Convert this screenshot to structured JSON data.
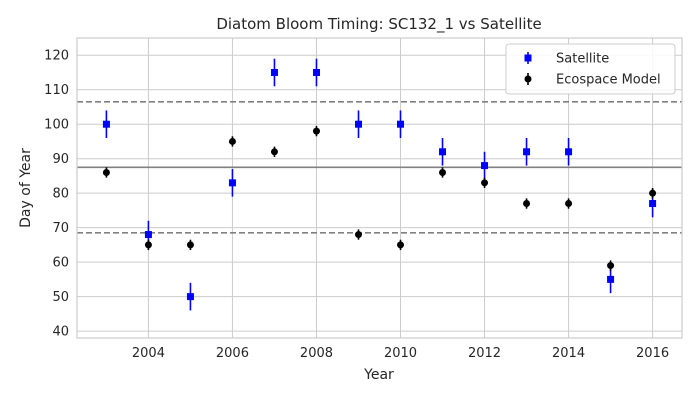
{
  "chart_data": {
    "type": "scatter",
    "title": "Diatom Bloom Timing: SC132_1 vs Satellite",
    "xlabel": "Year",
    "ylabel": "Day of Year",
    "xlim": [
      2002.3,
      2016.7
    ],
    "ylim": [
      38,
      125
    ],
    "xticks": [
      2004,
      2006,
      2008,
      2010,
      2012,
      2014,
      2016
    ],
    "yticks": [
      40,
      50,
      60,
      70,
      80,
      90,
      100,
      110,
      120
    ],
    "grid": true,
    "legend_position": "top-right",
    "reference_lines": {
      "mean": 87.5,
      "lower": 68.5,
      "upper": 106.5,
      "color": "#808080"
    },
    "series": [
      {
        "name": "Satellite",
        "marker": "square",
        "color": "#0000ff",
        "error": 4,
        "x": [
          2003,
          2004,
          2005,
          2006,
          2007,
          2008,
          2009,
          2010,
          2011,
          2012,
          2013,
          2014,
          2015,
          2016
        ],
        "y": [
          100,
          68,
          50,
          83,
          115,
          115,
          100,
          100,
          92,
          88,
          92,
          92,
          55,
          77
        ]
      },
      {
        "name": "Ecospace Model",
        "marker": "circle",
        "color": "#000000",
        "error": 1.5,
        "x": [
          2003,
          2004,
          2005,
          2006,
          2007,
          2008,
          2009,
          2010,
          2011,
          2012,
          2013,
          2014,
          2015,
          2016
        ],
        "y": [
          86,
          65,
          65,
          95,
          92,
          98,
          68,
          65,
          86,
          83,
          77,
          77,
          59,
          80
        ]
      }
    ]
  }
}
